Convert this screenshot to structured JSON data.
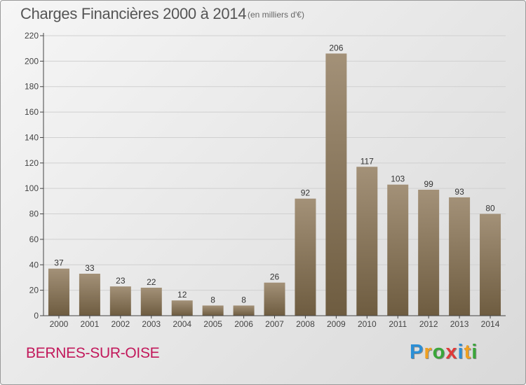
{
  "header": {
    "title": "Charges Financières 2000 à 2014",
    "subtitle": "(en milliers d'€)"
  },
  "footer": {
    "city": "BERNES-SUR-OISE",
    "logo_letters": [
      {
        "char": "P",
        "color": "#2b8fd6"
      },
      {
        "char": "r",
        "color": "#f0a020"
      },
      {
        "char": "o",
        "color": "#3aa63a"
      },
      {
        "char": "x",
        "color": "#e03a3a"
      },
      {
        "char": "i",
        "color": "#2b8fd6"
      },
      {
        "char": "t",
        "color": "#f0a020"
      },
      {
        "char": "i",
        "color": "#3aa63a"
      }
    ]
  },
  "colors": {
    "bar_light": "#a39178",
    "bar_dark": "#6e5c40",
    "gridline": "#d0d0d0",
    "axis": "#444444"
  },
  "chart_data": {
    "type": "bar",
    "categories": [
      "2000",
      "2001",
      "2002",
      "2003",
      "2004",
      "2005",
      "2006",
      "2007",
      "2008",
      "2009",
      "2010",
      "2011",
      "2012",
      "2013",
      "2014"
    ],
    "values": [
      37,
      33,
      23,
      22,
      12,
      8,
      8,
      26,
      92,
      206,
      117,
      103,
      99,
      93,
      80
    ],
    "title": "Charges Financières 2000 à 2014",
    "subtitle": "(en milliers d'€)",
    "xlabel": "",
    "ylabel": "",
    "ylim": [
      0,
      220
    ],
    "yticks": [
      0,
      20,
      40,
      60,
      80,
      100,
      120,
      140,
      160,
      180,
      200,
      220
    ],
    "grid": true,
    "data_labels": true
  }
}
